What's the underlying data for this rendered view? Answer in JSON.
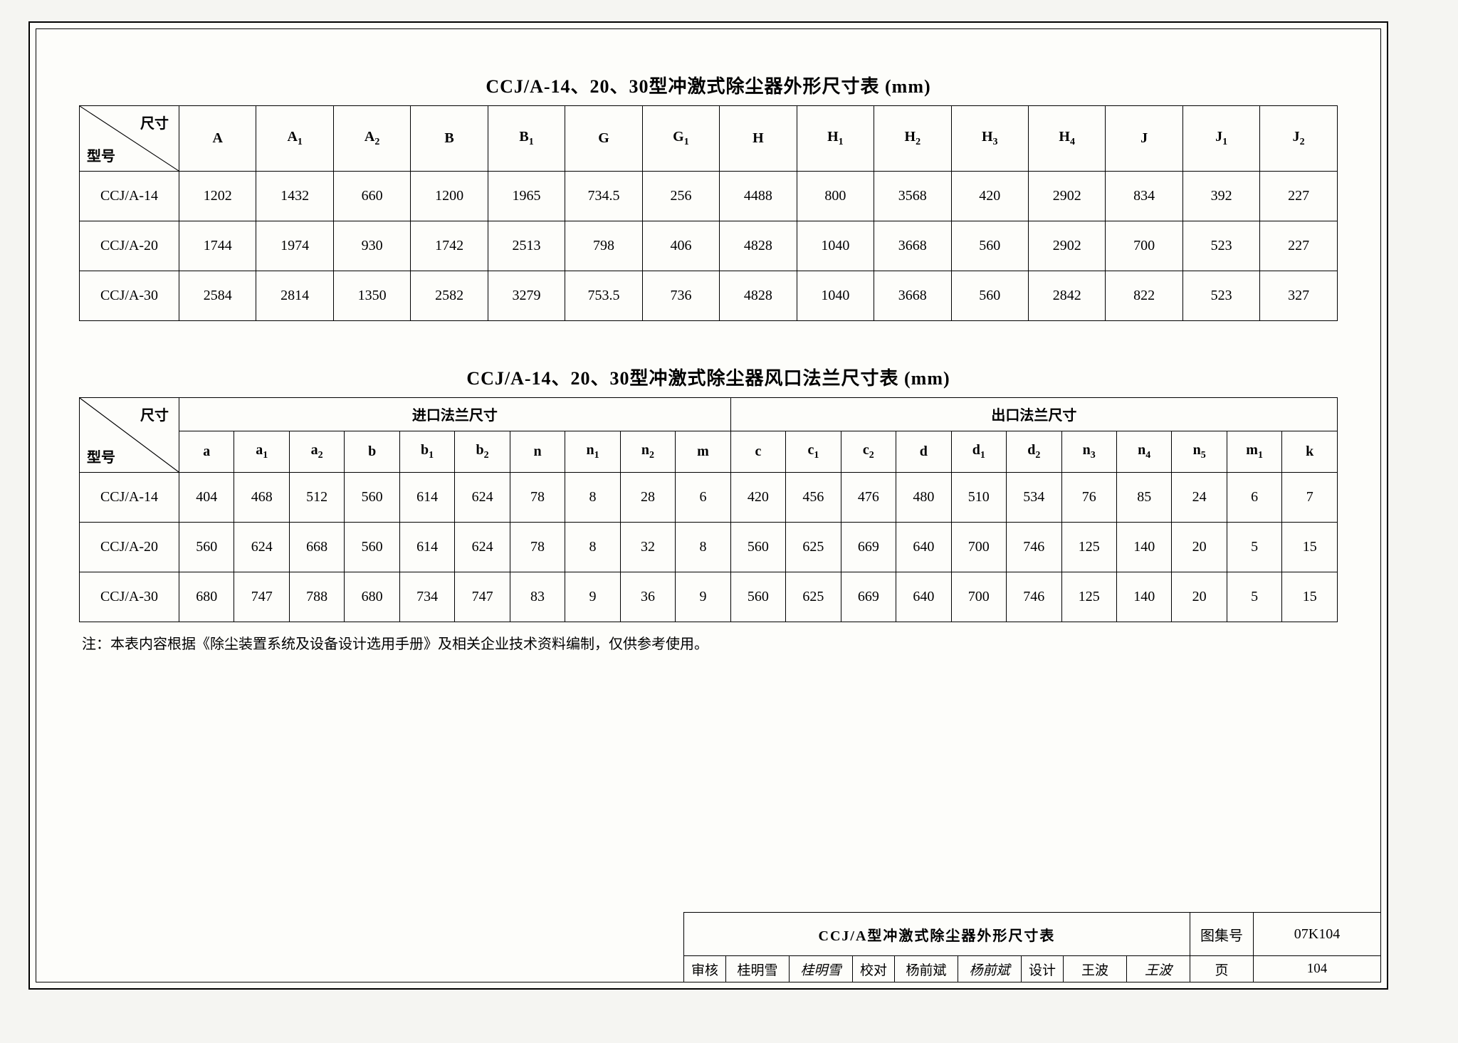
{
  "table1": {
    "title": "CCJ/A-14、20、30型冲激式除尘器外形尺寸表  (mm)",
    "diag_top": "尺寸",
    "diag_bot": "型号",
    "headers": [
      "A",
      "A₁",
      "A₂",
      "B",
      "B₁",
      "G",
      "G₁",
      "H",
      "H₁",
      "H₂",
      "H₃",
      "H₄",
      "J",
      "J₁",
      "J₂"
    ],
    "rows": [
      {
        "m": "CCJ/A-14",
        "v": [
          "1202",
          "1432",
          "660",
          "1200",
          "1965",
          "734.5",
          "256",
          "4488",
          "800",
          "3568",
          "420",
          "2902",
          "834",
          "392",
          "227"
        ]
      },
      {
        "m": "CCJ/A-20",
        "v": [
          "1744",
          "1974",
          "930",
          "1742",
          "2513",
          "798",
          "406",
          "4828",
          "1040",
          "3668",
          "560",
          "2902",
          "700",
          "523",
          "227"
        ]
      },
      {
        "m": "CCJ/A-30",
        "v": [
          "2584",
          "2814",
          "1350",
          "2582",
          "3279",
          "753.5",
          "736",
          "4828",
          "1040",
          "3668",
          "560",
          "2842",
          "822",
          "523",
          "327"
        ]
      }
    ]
  },
  "table2": {
    "title": "CCJ/A-14、20、30型冲激式除尘器风口法兰尺寸表  (mm)",
    "diag_top": "尺寸",
    "diag_bot": "型号",
    "group1": "进口法兰尺寸",
    "group2": "出口法兰尺寸",
    "sub_headers": [
      "a",
      "a₁",
      "a₂",
      "b",
      "b₁",
      "b₂",
      "n",
      "n₁",
      "n₂",
      "m",
      "c",
      "c₁",
      "c₂",
      "d",
      "d₁",
      "d₂",
      "n₃",
      "n₄",
      "n₅",
      "m₁",
      "k"
    ],
    "rows": [
      {
        "m": "CCJ/A-14",
        "v": [
          "404",
          "468",
          "512",
          "560",
          "614",
          "624",
          "78",
          "8",
          "28",
          "6",
          "420",
          "456",
          "476",
          "480",
          "510",
          "534",
          "76",
          "85",
          "24",
          "6",
          "7"
        ]
      },
      {
        "m": "CCJ/A-20",
        "v": [
          "560",
          "624",
          "668",
          "560",
          "614",
          "624",
          "78",
          "8",
          "32",
          "8",
          "560",
          "625",
          "669",
          "640",
          "700",
          "746",
          "125",
          "140",
          "20",
          "5",
          "15"
        ]
      },
      {
        "m": "CCJ/A-30",
        "v": [
          "680",
          "747",
          "788",
          "680",
          "734",
          "747",
          "83",
          "9",
          "36",
          "9",
          "560",
          "625",
          "669",
          "640",
          "700",
          "746",
          "125",
          "140",
          "20",
          "5",
          "15"
        ]
      }
    ]
  },
  "note": "注：本表内容根据《除尘装置系统及设备设计选用手册》及相关企业技术资料编制，仅供参考使用。",
  "titleblock": {
    "main": "CCJ/A型冲激式除尘器外形尺寸表",
    "atlas_lbl": "图集号",
    "atlas_no": "07K104",
    "page_lbl": "页",
    "page_no": "104",
    "fields": [
      {
        "lbl": "审核",
        "name": "桂明雪",
        "sig": "桂明雪"
      },
      {
        "lbl": "校对",
        "name": "杨前斌",
        "sig": "杨前斌"
      },
      {
        "lbl": "设计",
        "name": "王波",
        "sig": "王波"
      }
    ]
  }
}
